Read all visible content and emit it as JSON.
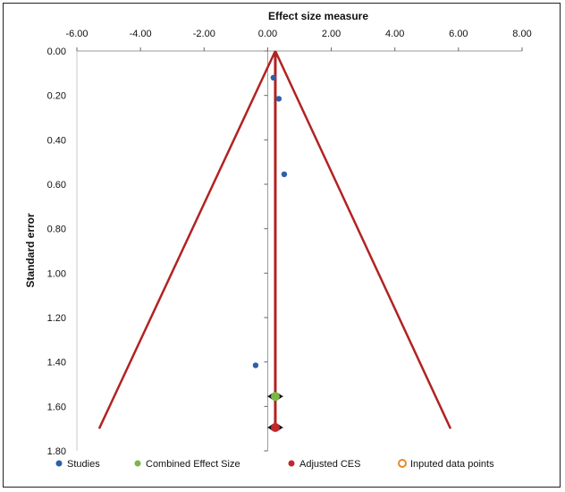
{
  "chart_data": {
    "type": "scatter",
    "title": "",
    "xlabel": "Effect size measure",
    "ylabel": "Standard error",
    "xlim": [
      -6,
      8
    ],
    "ylim": [
      0,
      1.8
    ],
    "y_inverted": true,
    "x_axis_position": "top",
    "x_ticks": [
      "-6.00",
      "-4.00",
      "-2.00",
      "0.00",
      "2.00",
      "4.00",
      "6.00",
      "8.00"
    ],
    "y_ticks": [
      "0.00",
      "0.20",
      "0.40",
      "0.60",
      "0.80",
      "1.00",
      "1.20",
      "1.40",
      "1.60",
      "1.80"
    ],
    "grid": false,
    "legend_position": "bottom",
    "series": [
      {
        "name": "Studies",
        "color": "#2f5fa8",
        "marker": "circle",
        "points": [
          {
            "x": 0.18,
            "y": 0.12
          },
          {
            "x": 0.35,
            "y": 0.215
          },
          {
            "x": 0.52,
            "y": 0.555
          },
          {
            "x": -0.38,
            "y": 1.415
          }
        ]
      },
      {
        "name": "Combined Effect Size",
        "color": "#7ab648",
        "marker": "circle",
        "points": [
          {
            "x": 0.24,
            "y": 1.555
          }
        ]
      },
      {
        "name": "Adjusted CES",
        "color": "#c0282d",
        "marker": "circle",
        "points": [
          {
            "x": 0.24,
            "y": 1.695
          }
        ]
      },
      {
        "name": "Inputed data points",
        "color": "#e8892a",
        "marker": "ring",
        "points": []
      }
    ],
    "funnel": {
      "color": "#b22222",
      "apex": {
        "x": 0.24,
        "y": 0.0
      },
      "left_base": {
        "x": -5.3,
        "y": 1.7
      },
      "right_base": {
        "x": 5.75,
        "y": 1.7
      },
      "center_line_x": 0.24
    },
    "confidence_intervals": [
      {
        "y": 1.555,
        "low": 0.0,
        "high": 0.48
      },
      {
        "y": 1.695,
        "low": 0.0,
        "high": 0.48
      }
    ]
  }
}
